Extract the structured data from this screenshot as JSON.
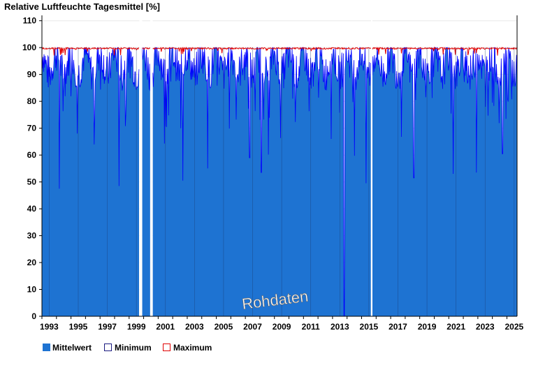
{
  "chart_data": {
    "type": "bar",
    "title": "Relative Luftfeuchte Tagesmittel [%]",
    "ylim": [
      0,
      112
    ],
    "yticks": [
      0,
      10,
      20,
      30,
      40,
      50,
      60,
      70,
      80,
      90,
      100,
      110
    ],
    "xlim": [
      1993.0,
      2025.7
    ],
    "xticks": [
      "1993",
      "1995",
      "1997",
      "1999",
      "2001",
      "2003",
      "2005",
      "2007",
      "2009",
      "2011",
      "2013",
      "2015",
      "2017",
      "2019",
      "2021",
      "2023",
      "2025"
    ],
    "grid": true,
    "legend_position": "bottom-left",
    "annotation": "Rohdaten",
    "gaps": [
      [
        1999.7,
        1999.9
      ],
      [
        2000.45,
        2000.62
      ],
      [
        2015.65,
        2015.72
      ]
    ],
    "series": [
      {
        "name": "Mittelwert",
        "color": "#1e73d2",
        "line_color": "#0000ff",
        "typical_range": [
          85,
          100
        ],
        "notable_minima": [
          {
            "x": 1994.2,
            "y": 47.5
          },
          {
            "x": 1998.3,
            "y": 48.5
          },
          {
            "x": 2002.7,
            "y": 50.5
          },
          {
            "x": 2004.4,
            "y": 55.0
          },
          {
            "x": 2007.3,
            "y": 59.0
          },
          {
            "x": 2008.1,
            "y": 53.5
          },
          {
            "x": 2013.8,
            "y": 0
          },
          {
            "x": 2015.3,
            "y": 49.5
          },
          {
            "x": 2018.6,
            "y": 51.5
          },
          {
            "x": 2021.3,
            "y": 53.0
          },
          {
            "x": 2022.9,
            "y": 53.5
          },
          {
            "x": 2024.7,
            "y": 60.5
          }
        ]
      },
      {
        "name": "Minimum",
        "color": "#1a1a80"
      },
      {
        "name": "Maximum",
        "color": "#e00000",
        "typical_value": 100
      }
    ]
  }
}
